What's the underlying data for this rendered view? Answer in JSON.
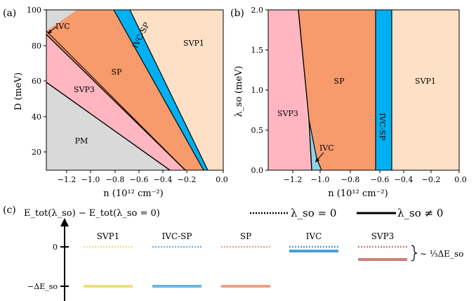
{
  "panels": {
    "a": {
      "label": "(a)",
      "xlabel": "n (10¹² cm⁻²)",
      "ylabel": "D (meV)",
      "xticks": [
        "−1.2",
        "−1.0",
        "−0.8",
        "−0.6",
        "−0.4",
        "−0.2",
        "0.0"
      ],
      "yticks": [
        "20",
        "40",
        "60",
        "80",
        "100"
      ],
      "regions": {
        "pm": "PM",
        "svp3": "SVP3",
        "sp": "SP",
        "ivcsp": "IVC-SP",
        "svp1": "SVP1",
        "ivc": "IVC"
      }
    },
    "b": {
      "label": "(b)",
      "xlabel": "n (10¹² cm⁻²)",
      "ylabel": "λ_so (meV)",
      "xticks": [
        "−1.2",
        "−1.0",
        "−0.8",
        "−0.6",
        "−0.4",
        "−0.2",
        "0.0"
      ],
      "yticks": [
        "0.0",
        "0.5",
        "1.0",
        "1.5",
        "2.0"
      ],
      "regions": {
        "svp3": "SVP3",
        "sp": "SP",
        "ivcsp": "IVC-SP",
        "svp1": "SVP1",
        "ivc": "IVC"
      }
    },
    "c": {
      "label": "(c)",
      "ylabel": "E_tot(λ_so) − E_tot(λ_so = 0)",
      "legend_dotted": "λ_so = 0",
      "legend_solid": "λ_so ≠ 0",
      "tick_zero": "0",
      "tick_neg": "−ΔE_so",
      "states": [
        "SVP1",
        "IVC-SP",
        "SP",
        "IVC",
        "SVP3"
      ],
      "brace_label": "∼ ⅓ΔE_so"
    }
  },
  "colors": {
    "pm": "#d9d9d9",
    "svp3": "#ffb6c1",
    "sp": "#f79a6c",
    "ivcsp": "#00b0f0",
    "svp1": "#fde0c6",
    "ivc": "#8fd4e8",
    "svp1_level": "#ede07e",
    "ivcsp_level": "#6bb6e6",
    "sp_level": "#e6a484",
    "ivc_level": "#4a9fd8",
    "svp3_level": "#cc7f7b"
  }
}
